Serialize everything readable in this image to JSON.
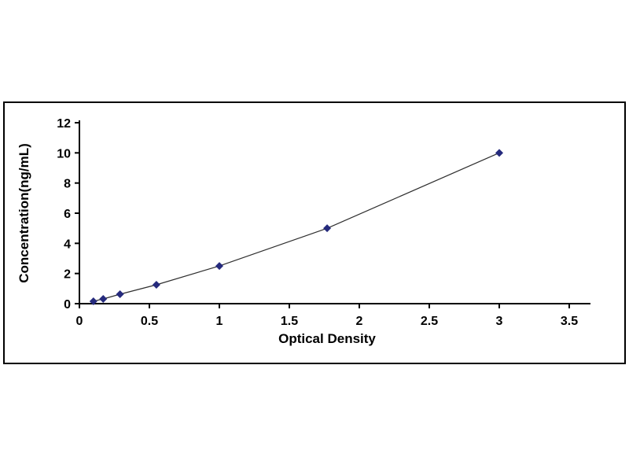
{
  "chart_data": {
    "type": "line",
    "title": "",
    "xlabel": "Optical Density",
    "ylabel": "Concentration(ng/mL)",
    "xlim": [
      0,
      3.5
    ],
    "ylim": [
      0,
      12
    ],
    "x_ticks": [
      0,
      0.5,
      1,
      1.5,
      2,
      2.5,
      3,
      3.5
    ],
    "y_ticks": [
      0,
      2,
      4,
      6,
      8,
      10,
      12
    ],
    "grid": false,
    "legend_position": "none",
    "series": [
      {
        "name": "standard-curve",
        "marker": "diamond",
        "marker_color": "#252a7d",
        "line_color": "#2f2f2f",
        "points": [
          {
            "x": 0.1,
            "y": 0.156
          },
          {
            "x": 0.17,
            "y": 0.312
          },
          {
            "x": 0.29,
            "y": 0.625
          },
          {
            "x": 0.55,
            "y": 1.25
          },
          {
            "x": 1.0,
            "y": 2.5
          },
          {
            "x": 1.77,
            "y": 5.0
          },
          {
            "x": 3.0,
            "y": 10.0
          }
        ]
      }
    ],
    "colors": {
      "axis": "#000000",
      "background": "#ffffff",
      "border": "#000000"
    }
  }
}
